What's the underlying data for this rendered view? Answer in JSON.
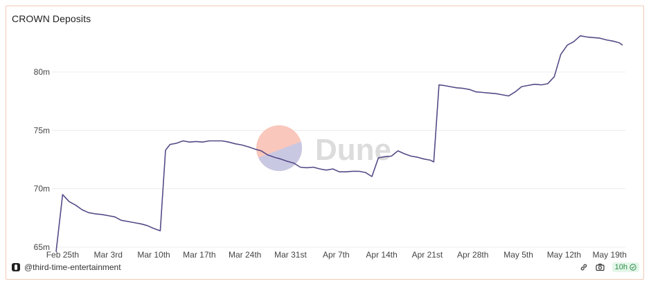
{
  "title": "CROWN Deposits",
  "author": "@third-time-entertainment",
  "refresh_age": "10h",
  "watermark": "Dune",
  "colors": {
    "line": "#544a86",
    "grid": "#ececec",
    "card_border": "#f0c9b4",
    "watermark_top": "#f9c7bb",
    "watermark_bottom": "#c9c8e3",
    "watermark_text": "#dcdcdc",
    "badge_bg": "#e3f6e8",
    "badge_fg": "#2f8a4b"
  },
  "icons": {
    "logo": "dune-logo-icon",
    "link": "link-icon",
    "camera": "camera-icon",
    "check": "check-circle-icon"
  },
  "chart_data": {
    "type": "line",
    "title": "CROWN Deposits",
    "xlabel": "",
    "ylabel": "",
    "grid": true,
    "ylim": [
      65,
      83.5
    ],
    "xlim": [
      0,
      87
    ],
    "y_ticks": [
      {
        "value": 65,
        "label": "65m"
      },
      {
        "value": 70,
        "label": "70m"
      },
      {
        "value": 75,
        "label": "75m"
      },
      {
        "value": 80,
        "label": "80m"
      }
    ],
    "x_ticks": [
      {
        "day": 1,
        "label": "Feb 25th"
      },
      {
        "day": 8,
        "label": "Mar 3rd"
      },
      {
        "day": 15,
        "label": "Mar 10th"
      },
      {
        "day": 22,
        "label": "Mar 17th"
      },
      {
        "day": 29,
        "label": "Mar 24th"
      },
      {
        "day": 36,
        "label": "Mar 31st"
      },
      {
        "day": 43,
        "label": "Apr 7th"
      },
      {
        "day": 50,
        "label": "Apr 14th"
      },
      {
        "day": 57,
        "label": "Apr 21st"
      },
      {
        "day": 64,
        "label": "Apr 28th"
      },
      {
        "day": 71,
        "label": "May 5th"
      },
      {
        "day": 78,
        "label": "May 12th"
      },
      {
        "day": 85,
        "label": "May 19th"
      }
    ],
    "series": [
      {
        "values": [
          [
            0,
            64.6
          ],
          [
            1,
            69.5
          ],
          [
            2,
            68.9
          ],
          [
            3,
            68.6
          ],
          [
            4,
            68.2
          ],
          [
            5,
            67.95
          ],
          [
            6,
            67.85
          ],
          [
            7,
            67.8
          ],
          [
            8,
            67.7
          ],
          [
            9,
            67.6
          ],
          [
            10,
            67.3
          ],
          [
            11,
            67.2
          ],
          [
            12,
            67.1
          ],
          [
            13,
            67.0
          ],
          [
            14,
            66.85
          ],
          [
            15,
            66.6
          ],
          [
            16,
            66.4
          ],
          [
            16.8,
            73.3
          ],
          [
            17.5,
            73.8
          ],
          [
            18.5,
            73.9
          ],
          [
            19.5,
            74.1
          ],
          [
            20.5,
            74.0
          ],
          [
            21.5,
            74.05
          ],
          [
            22.5,
            74.0
          ],
          [
            23.5,
            74.1
          ],
          [
            24.5,
            74.1
          ],
          [
            25.5,
            74.1
          ],
          [
            26.5,
            74.0
          ],
          [
            27.5,
            73.85
          ],
          [
            28.5,
            73.75
          ],
          [
            29.5,
            73.6
          ],
          [
            30.5,
            73.4
          ],
          [
            31.5,
            73.25
          ],
          [
            32.5,
            72.9
          ],
          [
            33.5,
            72.7
          ],
          [
            34.5,
            72.55
          ],
          [
            35.5,
            72.35
          ],
          [
            36.5,
            72.2
          ],
          [
            37.5,
            71.85
          ],
          [
            38.5,
            71.8
          ],
          [
            39.5,
            71.85
          ],
          [
            40.5,
            71.7
          ],
          [
            41.5,
            71.6
          ],
          [
            42.5,
            71.7
          ],
          [
            43.5,
            71.45
          ],
          [
            44.5,
            71.45
          ],
          [
            45.5,
            71.5
          ],
          [
            46.5,
            71.5
          ],
          [
            47.5,
            71.4
          ],
          [
            48.5,
            71.05
          ],
          [
            49.5,
            72.65
          ],
          [
            50.5,
            72.75
          ],
          [
            51.5,
            72.8
          ],
          [
            52.5,
            73.25
          ],
          [
            53.5,
            73.0
          ],
          [
            54.5,
            72.8
          ],
          [
            55.5,
            72.7
          ],
          [
            56.5,
            72.55
          ],
          [
            57.5,
            72.45
          ],
          [
            58,
            72.3
          ],
          [
            58.8,
            78.9
          ],
          [
            59.5,
            78.85
          ],
          [
            60.5,
            78.75
          ],
          [
            61.5,
            78.65
          ],
          [
            62.5,
            78.6
          ],
          [
            63.5,
            78.5
          ],
          [
            64.5,
            78.3
          ],
          [
            65.5,
            78.25
          ],
          [
            66.5,
            78.2
          ],
          [
            67.5,
            78.15
          ],
          [
            68.5,
            78.05
          ],
          [
            69.5,
            77.95
          ],
          [
            70.5,
            78.3
          ],
          [
            71.5,
            78.75
          ],
          [
            72.5,
            78.85
          ],
          [
            73.5,
            78.95
          ],
          [
            74.5,
            78.9
          ],
          [
            75.5,
            79.0
          ],
          [
            76.5,
            79.6
          ],
          [
            77.5,
            81.5
          ],
          [
            78.5,
            82.3
          ],
          [
            79.5,
            82.6
          ],
          [
            80.5,
            83.1
          ],
          [
            81.5,
            83.0
          ],
          [
            82.5,
            82.95
          ],
          [
            83.5,
            82.9
          ],
          [
            84.5,
            82.75
          ],
          [
            85.5,
            82.65
          ],
          [
            86.5,
            82.5
          ],
          [
            87,
            82.3
          ]
        ]
      }
    ]
  }
}
